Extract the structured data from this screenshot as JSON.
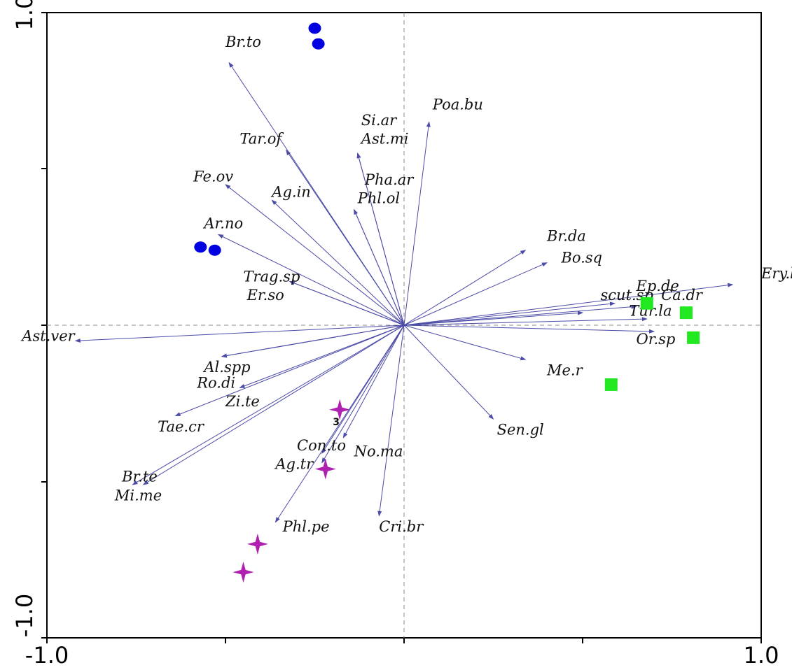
{
  "chart_data": {
    "type": "scatter",
    "subtype": "ordination-biplot",
    "title": "",
    "xlabel": "",
    "ylabel": "",
    "xlim": [
      -1.0,
      1.0
    ],
    "ylim": [
      -1.0,
      1.0
    ],
    "x_tick_labels": [
      "-1.0",
      "1.0"
    ],
    "y_tick_labels": [
      "1.0",
      "-1.0"
    ],
    "grid": false,
    "zero_lines": true,
    "arrow_color": "#4b4ba8",
    "species": [
      {
        "label": "Br.to",
        "x": -0.49,
        "y": 0.84,
        "lx": -0.5,
        "ly": 0.89
      },
      {
        "label": "Tar.of",
        "x": -0.33,
        "y": 0.56,
        "lx": -0.46,
        "ly": 0.58
      },
      {
        "label": "Si.ar",
        "x": -0.13,
        "y": 0.55,
        "lx": -0.12,
        "ly": 0.64
      },
      {
        "label": "Ast.mi",
        "x": -0.13,
        "y": 0.55,
        "lx": -0.12,
        "ly": 0.58
      },
      {
        "label": "Poa.bu",
        "x": 0.07,
        "y": 0.65,
        "lx": 0.08,
        "ly": 0.69
      },
      {
        "label": "Fe.ov",
        "x": -0.5,
        "y": 0.45,
        "lx": -0.59,
        "ly": 0.46
      },
      {
        "label": "Ag.in",
        "x": -0.37,
        "y": 0.4,
        "lx": -0.37,
        "ly": 0.41
      },
      {
        "label": "Pha.ar",
        "x": -0.14,
        "y": 0.37,
        "lx": -0.11,
        "ly": 0.45
      },
      {
        "label": "Phl.ol",
        "x": -0.14,
        "y": 0.37,
        "lx": -0.13,
        "ly": 0.39
      },
      {
        "label": "Ar.no",
        "x": -0.52,
        "y": 0.29,
        "lx": -0.56,
        "ly": 0.31
      },
      {
        "label": "Br.da",
        "x": 0.34,
        "y": 0.24,
        "lx": 0.4,
        "ly": 0.27
      },
      {
        "label": "Bo.sq",
        "x": 0.4,
        "y": 0.2,
        "lx": 0.44,
        "ly": 0.2
      },
      {
        "label": "Trag.sp",
        "x": -0.32,
        "y": 0.14,
        "lx": -0.45,
        "ly": 0.14
      },
      {
        "label": "Er.so",
        "x": -0.32,
        "y": 0.14,
        "lx": -0.44,
        "ly": 0.08
      },
      {
        "label": "Ery.bi",
        "x": 0.92,
        "y": 0.13,
        "lx": 1.0,
        "ly": 0.15
      },
      {
        "label": "Ep.de",
        "x": 0.59,
        "y": 0.07,
        "lx": 0.65,
        "ly": 0.11
      },
      {
        "label": "Ca.dr",
        "x": 0.65,
        "y": 0.06,
        "lx": 0.72,
        "ly": 0.08
      },
      {
        "label": "scut.sp",
        "x": 0.5,
        "y": 0.04,
        "lx": 0.55,
        "ly": 0.08
      },
      {
        "label": "Tur.la",
        "x": 0.68,
        "y": 0.02,
        "lx": 0.63,
        "ly": 0.03
      },
      {
        "label": "Or.sp",
        "x": 0.7,
        "y": -0.02,
        "lx": 0.65,
        "ly": -0.06
      },
      {
        "label": "Ast.ver",
        "x": -0.92,
        "y": -0.05,
        "lx": -1.07,
        "ly": -0.05
      },
      {
        "label": "Al.spp",
        "x": -0.51,
        "y": -0.1,
        "lx": -0.56,
        "ly": -0.15
      },
      {
        "label": "Ro.di",
        "x": -0.51,
        "y": -0.1,
        "lx": -0.58,
        "ly": -0.2
      },
      {
        "label": "Me.r",
        "x": 0.34,
        "y": -0.11,
        "lx": 0.4,
        "ly": -0.16
      },
      {
        "label": "Zi.te",
        "x": -0.46,
        "y": -0.2,
        "lx": -0.5,
        "ly": -0.26
      },
      {
        "label": "Tae.cr",
        "x": -0.64,
        "y": -0.29,
        "lx": -0.69,
        "ly": -0.34
      },
      {
        "label": "Sen.gl",
        "x": 0.25,
        "y": -0.3,
        "lx": 0.26,
        "ly": -0.35
      },
      {
        "label": "Con.to",
        "x": -0.23,
        "y": -0.41,
        "lx": -0.3,
        "ly": -0.4
      },
      {
        "label": "No.ma",
        "x": -0.17,
        "y": -0.36,
        "lx": -0.14,
        "ly": -0.42
      },
      {
        "label": "Ag.tr",
        "x": -0.23,
        "y": -0.44,
        "lx": -0.36,
        "ly": -0.46
      },
      {
        "label": "Br.te",
        "x": -0.76,
        "y": -0.51,
        "lx": -0.79,
        "ly": -0.5
      },
      {
        "label": "Mi.me",
        "x": -0.73,
        "y": -0.51,
        "lx": -0.81,
        "ly": -0.56
      },
      {
        "label": "Phl.pe",
        "x": -0.36,
        "y": -0.63,
        "lx": -0.34,
        "ly": -0.66
      },
      {
        "label": "Cri.br",
        "x": -0.07,
        "y": -0.61,
        "lx": -0.07,
        "ly": -0.66
      }
    ],
    "site_groups": [
      {
        "shape": "circle",
        "color": "#0000e0",
        "points": [
          [
            -0.25,
            0.95
          ],
          [
            -0.24,
            0.9
          ],
          [
            -0.57,
            0.25
          ],
          [
            -0.53,
            0.24
          ]
        ]
      },
      {
        "shape": "square",
        "color": "#22e822",
        "points": [
          [
            0.68,
            0.07
          ],
          [
            0.79,
            0.04
          ],
          [
            0.81,
            -0.04
          ],
          [
            0.58,
            -0.19
          ]
        ]
      },
      {
        "shape": "star",
        "color": "#b020b0",
        "points": [
          [
            -0.18,
            -0.27
          ],
          [
            -0.22,
            -0.46
          ],
          [
            -0.41,
            -0.7
          ],
          [
            -0.45,
            -0.79
          ]
        ]
      }
    ],
    "site_labels": [
      {
        "text": "3",
        "x": -0.19,
        "y": -0.32
      }
    ]
  }
}
